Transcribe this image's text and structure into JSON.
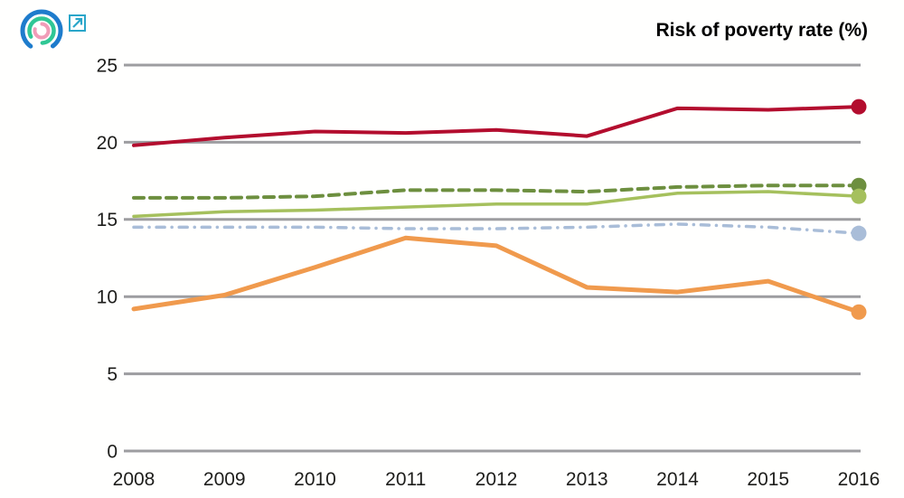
{
  "header": {
    "title": "Risk of poverty rate (%)",
    "logo": {
      "rings_icon": "concentric-rings-logo-icon",
      "link_icon": "external-link-icon",
      "ring_colors": {
        "outer": "#1e7ccc",
        "middle": "#30c795",
        "inner": "#f19cb8"
      },
      "link_color": "#2aa6c9"
    }
  },
  "chart_data": {
    "type": "line",
    "title": "Risk of poverty rate (%)",
    "x": [
      2008,
      2009,
      2010,
      2011,
      2012,
      2013,
      2014,
      2015,
      2016
    ],
    "series": [
      {
        "id": "red-line",
        "name": "red solid line",
        "color": "#b30d2e",
        "style": "solid",
        "stroke_width": 4,
        "end_marker": true,
        "values": [
          19.8,
          20.3,
          20.7,
          20.6,
          20.8,
          20.4,
          22.2,
          22.1,
          22.3
        ]
      },
      {
        "id": "dark-green-dashed-line",
        "name": "dark green dashed line",
        "color": "#6d8f3f",
        "style": "dashed",
        "stroke_width": 4,
        "end_marker": true,
        "values": [
          16.4,
          16.4,
          16.5,
          16.9,
          16.9,
          16.8,
          17.1,
          17.2,
          17.2
        ]
      },
      {
        "id": "light-green-line",
        "name": "light green solid line",
        "color": "#a5c05d",
        "style": "solid",
        "stroke_width": 3.5,
        "end_marker": true,
        "values": [
          15.2,
          15.5,
          15.6,
          15.8,
          16.0,
          16.0,
          16.7,
          16.8,
          16.5
        ]
      },
      {
        "id": "blue-dash-dot-line",
        "name": "light blue dash-dot line",
        "color": "#a9bdd8",
        "style": "dash-dot",
        "stroke_width": 3.5,
        "end_marker": true,
        "values": [
          14.5,
          14.5,
          14.5,
          14.4,
          14.4,
          14.5,
          14.7,
          14.5,
          14.1
        ]
      },
      {
        "id": "orange-line",
        "name": "orange solid line",
        "color": "#f09a4d",
        "style": "solid",
        "stroke_width": 5,
        "end_marker": true,
        "values": [
          9.2,
          10.1,
          11.9,
          13.8,
          13.3,
          10.6,
          10.3,
          11.0,
          9.0
        ]
      }
    ],
    "xlabel": "",
    "ylabel": "",
    "ylim": [
      0,
      25
    ],
    "yticks": [
      0,
      5,
      10,
      15,
      20,
      25
    ],
    "grid": "horizontal",
    "grid_color": "#9d9da0",
    "tick_label_color": "#1d1d1b",
    "legend": "none"
  }
}
